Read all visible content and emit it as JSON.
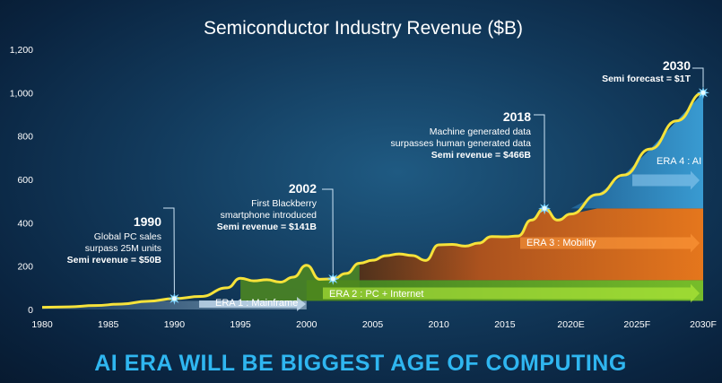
{
  "chart_data": {
    "type": "area",
    "title": "Semiconductor Industry Revenue ($B)",
    "y_ticks": [
      "0",
      "200",
      "400",
      "600",
      "800",
      "1,000",
      "1,200"
    ],
    "x_ticks": [
      "1980",
      "1985",
      "1990",
      "1995",
      "2000",
      "2005",
      "2010",
      "2015",
      "2020E",
      "2025F",
      "2030F"
    ],
    "ylim": [
      0,
      1200
    ],
    "xlim": [
      1980,
      2030
    ],
    "series": [
      {
        "x": [
          1980,
          1982,
          1984,
          1986,
          1988,
          1990,
          1992,
          1994,
          1995,
          1996,
          1997,
          1998,
          1999,
          2000,
          2001,
          2002,
          2003,
          2004,
          2005,
          2006,
          2007,
          2008,
          2009,
          2010,
          2011,
          2012,
          2013,
          2014,
          2015,
          2016,
          2017,
          2018,
          2019,
          2020,
          2022,
          2024,
          2026,
          2028,
          2030
        ],
        "values": [
          10,
          12,
          18,
          25,
          38,
          50,
          60,
          100,
          144,
          132,
          137,
          126,
          149,
          204,
          139,
          141,
          166,
          213,
          227,
          248,
          256,
          249,
          226,
          298,
          300,
          292,
          306,
          336,
          335,
          339,
          412,
          466,
          412,
          440,
          530,
          620,
          740,
          870,
          1000
        ]
      }
    ],
    "eras": [
      {
        "label": "ERA 1 : Mainframe",
        "start": 1980,
        "end": 2000,
        "level": 0,
        "top": 40,
        "color": "#a9cbe6"
      },
      {
        "label": "ERA 2 : PC + Internet",
        "start": 2000,
        "end": 2030,
        "level": 40,
        "top": 135,
        "color": "#7cc428"
      },
      {
        "label": "ERA 3 : Mobility",
        "start": 2004,
        "end": 2030,
        "level": 135,
        "top": 466,
        "color": "#f07a1a"
      },
      {
        "label": "ERA 4 : AI",
        "start": 2018,
        "end": 2030,
        "level": 466,
        "top": 1000,
        "color": "#2e85c0"
      }
    ],
    "annotations": [
      {
        "year": "1990",
        "x": 1990,
        "y": 50,
        "lines": [
          "Global PC sales",
          "surpass 25M units"
        ],
        "bold": "Semi revenue = $50B"
      },
      {
        "year": "2002",
        "x": 2002,
        "y": 141,
        "lines": [
          "First Blackberry",
          "smartphone introduced"
        ],
        "bold": "Semi revenue = $141B"
      },
      {
        "year": "2018",
        "x": 2018,
        "y": 466,
        "lines": [
          "Machine generated data",
          "surpasses human generated data"
        ],
        "bold": "Semi revenue = $466B"
      },
      {
        "year": "2030",
        "x": 2030,
        "y": 1000,
        "lines": [],
        "bold": "Semi forecast = $1T"
      }
    ]
  },
  "banner": "AI ERA WILL BE BIGGEST AGE OF COMPUTING"
}
